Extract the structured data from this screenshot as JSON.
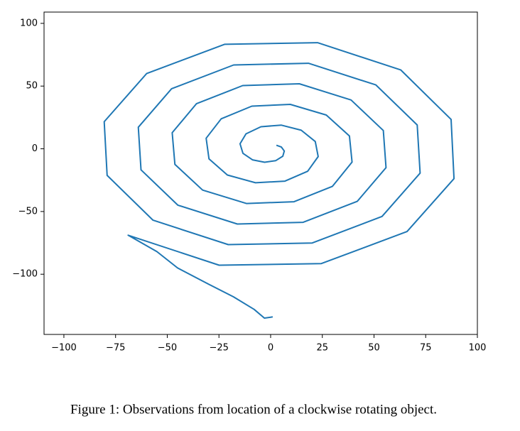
{
  "chart_data": {
    "type": "line",
    "caption": "Figure 1: Observations from location of a clockwise rotating object.",
    "color": "#1f77b4",
    "x": [
      2.8,
      5.2,
      6.6,
      5.9,
      2.5,
      -2.9,
      -8.8,
      -13.4,
      -14.8,
      -11.9,
      -4.7,
      5.1,
      14.8,
      21.6,
      23.0,
      17.9,
      6.9,
      -7.3,
      -20.9,
      -29.8,
      -31.2,
      -23.9,
      -9.1,
      9.5,
      26.9,
      38.1,
      39.4,
      29.9,
      11.3,
      -11.7,
      -32.9,
      -46.3,
      -47.6,
      -35.9,
      -13.5,
      13.9,
      38.9,
      54.5,
      55.8,
      41.9,
      15.7,
      -16.1,
      -44.9,
      -62.7,
      -64.0,
      -47.9,
      -17.9,
      18.3,
      50.9,
      70.9,
      72.3,
      53.9,
      20.1,
      -20.5,
      -56.9,
      -79.1,
      -80.5,
      -60.0,
      -22.3,
      22.7,
      62.9,
      87.3,
      88.7,
      66.0,
      24.5,
      -24.9,
      -68.9,
      -55,
      -45,
      -30,
      -18,
      -8,
      -3,
      1
    ],
    "values": [
      2.8,
      1.4,
      -1.8,
      -5.9,
      -9.4,
      -10.7,
      -8.8,
      -3.6,
      4.0,
      11.9,
      17.6,
      18.9,
      14.8,
      5.8,
      -6.2,
      -17.9,
      -25.8,
      -27.1,
      -20.9,
      -8.0,
      8.4,
      23.9,
      34.0,
      35.4,
      26.9,
      10.2,
      -10.6,
      -29.9,
      -42.2,
      -43.6,
      -32.9,
      -12.4,
      12.8,
      35.9,
      50.4,
      51.8,
      38.9,
      14.6,
      -15.0,
      -41.9,
      -58.6,
      -60.0,
      -44.9,
      -16.8,
      17.2,
      47.9,
      66.8,
      68.2,
      50.9,
      19.0,
      -19.4,
      -53.9,
      -75.1,
      -76.4,
      -56.9,
      -21.2,
      21.6,
      60.0,
      83.3,
      84.6,
      62.9,
      23.4,
      -23.8,
      -66.0,
      -91.5,
      -92.8,
      -68.9,
      -82,
      -95,
      -108,
      -118,
      -128,
      -135,
      -134
    ],
    "xlim": [
      -109.6,
      100
    ],
    "ylim": [
      -148,
      109
    ],
    "xticks": [
      {
        "value": -100,
        "label": "−100"
      },
      {
        "value": -75,
        "label": "−75"
      },
      {
        "value": -50,
        "label": "−50"
      },
      {
        "value": -25,
        "label": "−25"
      },
      0,
      25,
      50,
      75,
      100
    ],
    "yticks": [
      {
        "value": -100,
        "label": "−100"
      },
      {
        "value": -50,
        "label": "−50"
      },
      0,
      50,
      100
    ]
  }
}
